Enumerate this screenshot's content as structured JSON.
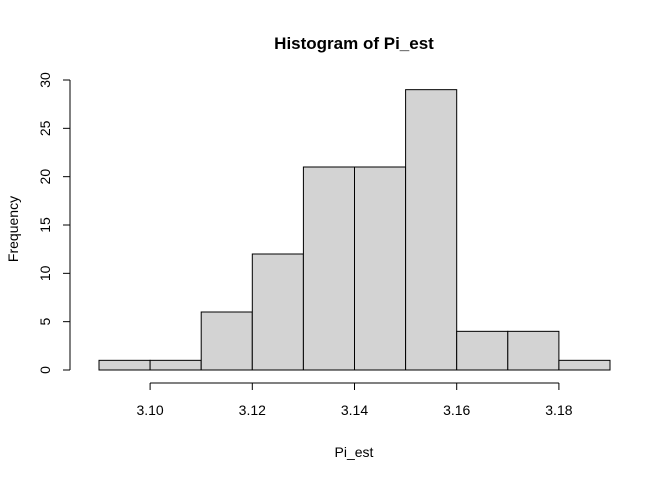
{
  "chart_data": {
    "type": "bar",
    "title": "Histogram of Pi_est",
    "xlabel": "Pi_est",
    "ylabel": "Frequency",
    "bins": [
      {
        "from": 3.09,
        "to": 3.1,
        "count": 1
      },
      {
        "from": 3.1,
        "to": 3.11,
        "count": 1
      },
      {
        "from": 3.11,
        "to": 3.12,
        "count": 6
      },
      {
        "from": 3.12,
        "to": 3.13,
        "count": 12
      },
      {
        "from": 3.13,
        "to": 3.14,
        "count": 21
      },
      {
        "from": 3.14,
        "to": 3.15,
        "count": 21
      },
      {
        "from": 3.15,
        "to": 3.16,
        "count": 29
      },
      {
        "from": 3.16,
        "to": 3.17,
        "count": 4
      },
      {
        "from": 3.17,
        "to": 3.18,
        "count": 4
      },
      {
        "from": 3.18,
        "to": 3.19,
        "count": 1
      }
    ],
    "x_ticks": [
      "3.10",
      "3.12",
      "3.14",
      "3.16",
      "3.18"
    ],
    "y_ticks": [
      "0",
      "5",
      "10",
      "15",
      "20",
      "25",
      "30"
    ],
    "xlim": [
      3.09,
      3.19
    ],
    "ylim": [
      0,
      30
    ],
    "bar_color": "#d3d3d3",
    "grid": false
  }
}
